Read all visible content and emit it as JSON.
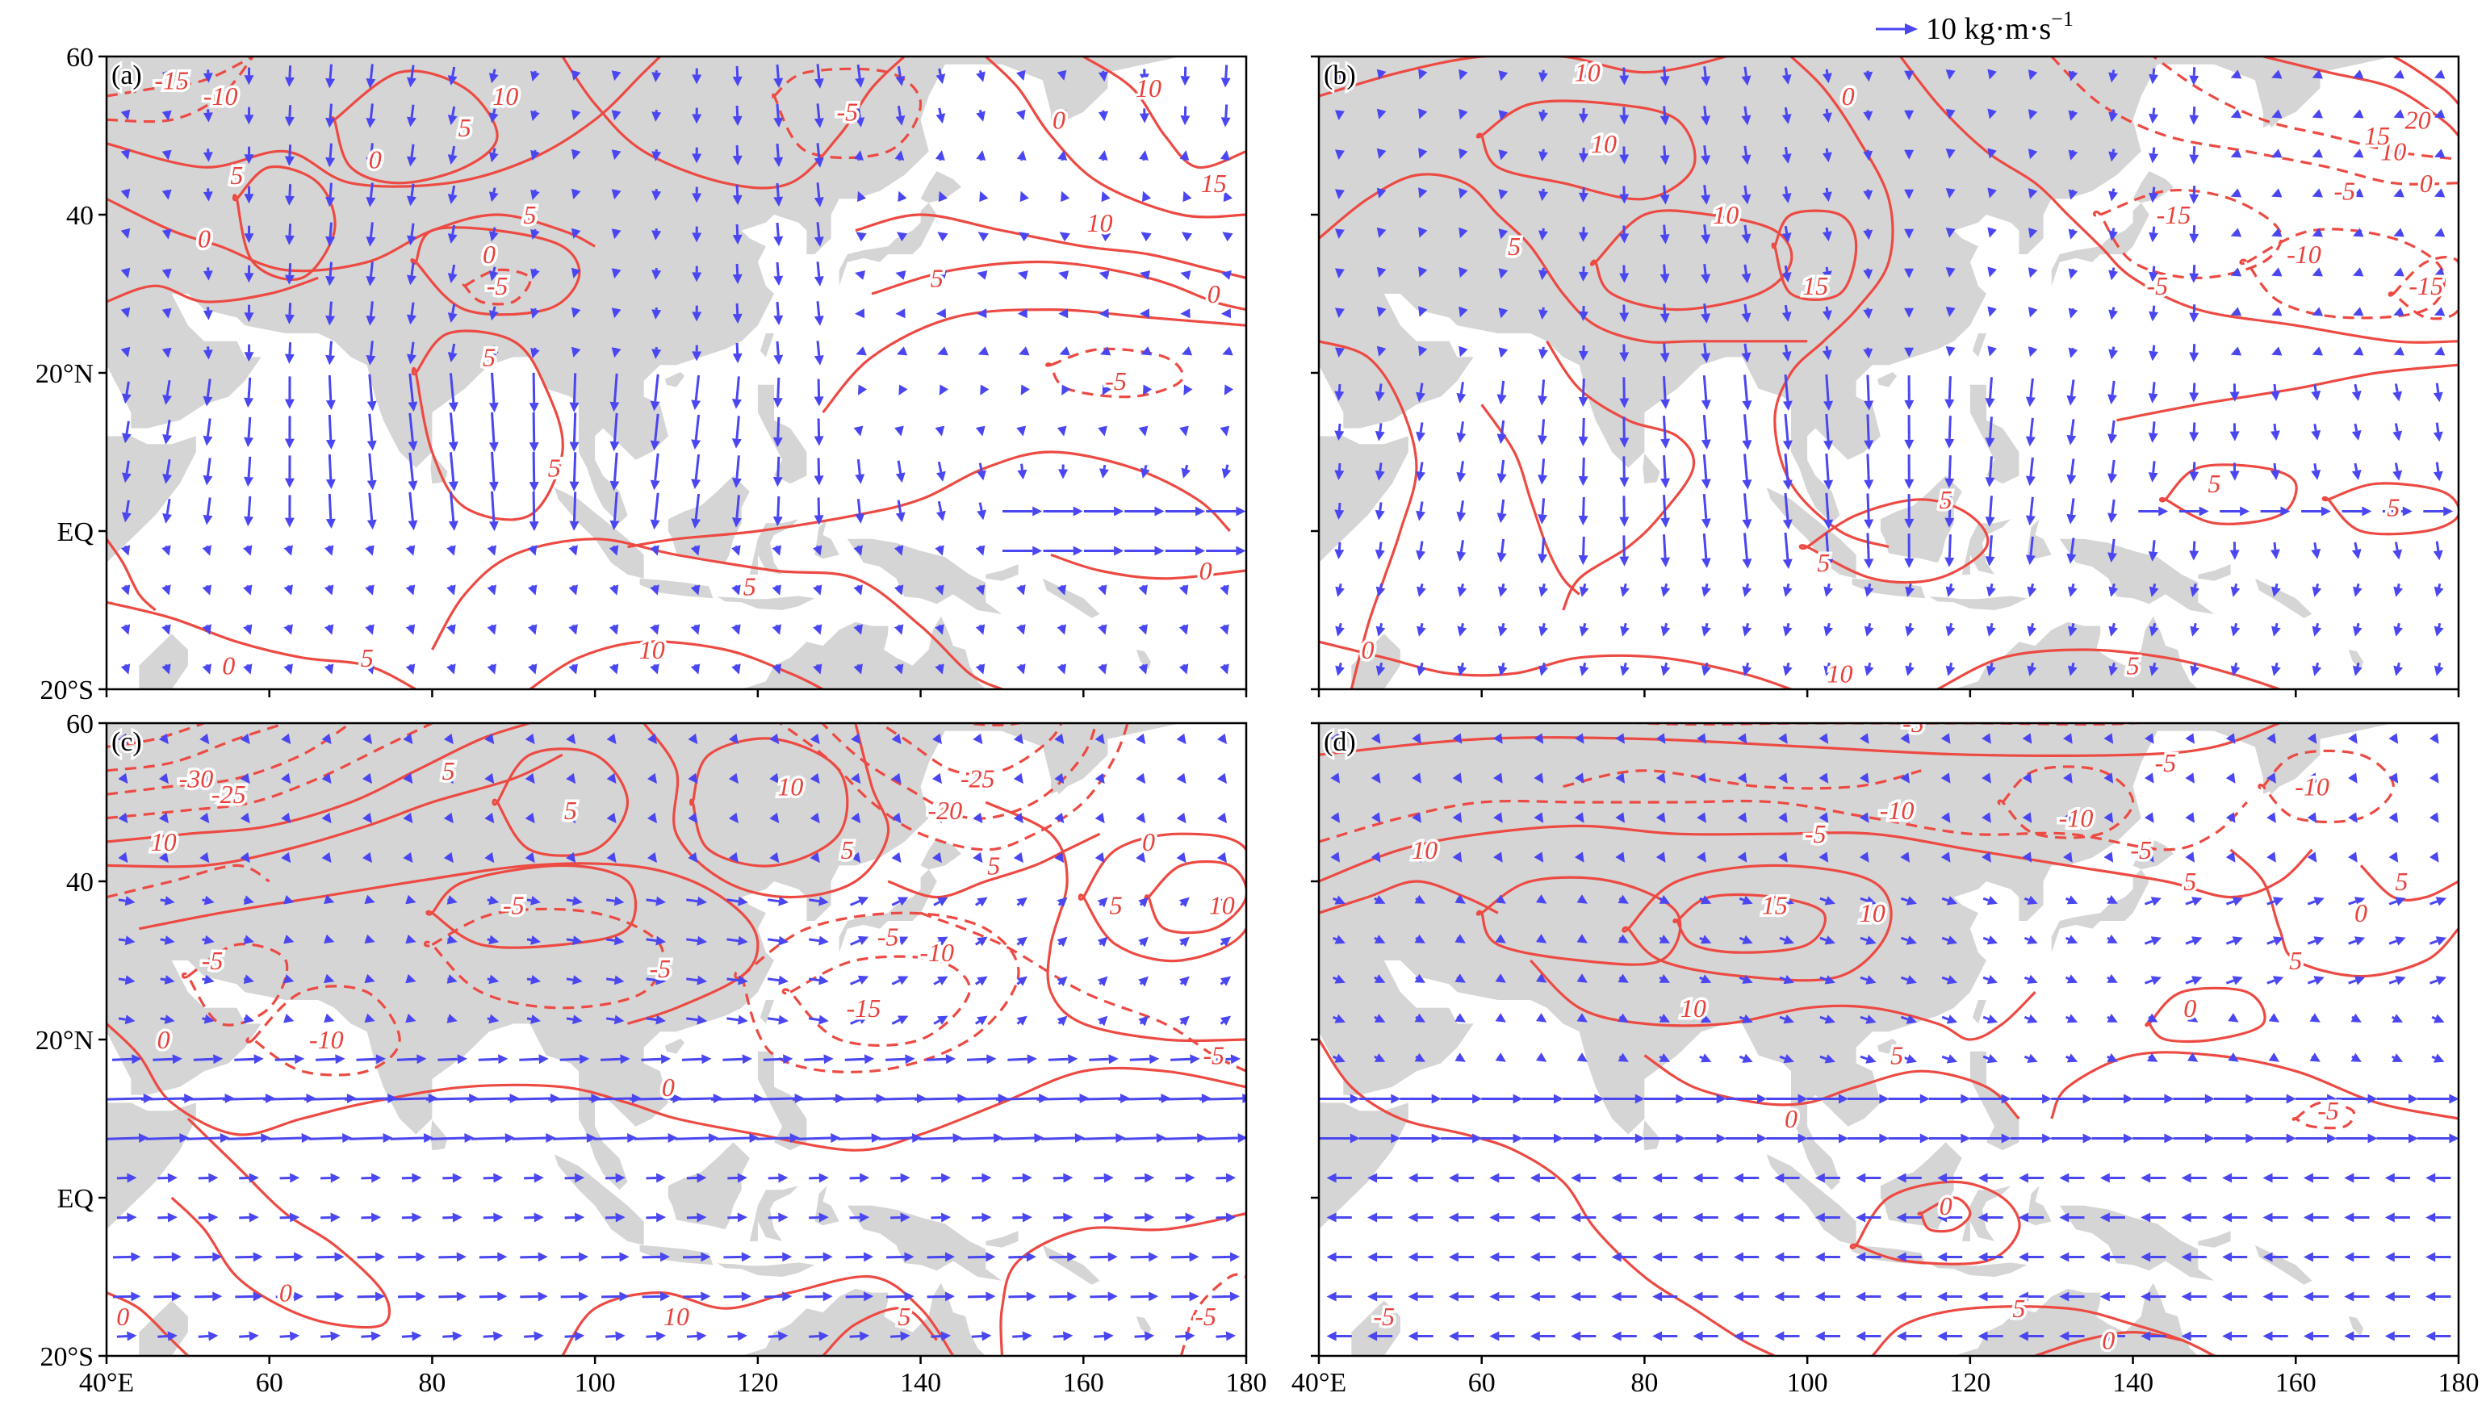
{
  "legend": {
    "vector_label": "10 kg·m·s",
    "vector_label_exponent": "−1",
    "vector_color": "#4a46f0"
  },
  "colors": {
    "contour": "#ec4a42",
    "land": "#d5d5d5",
    "vector": "#4a46f0"
  },
  "axes": {
    "lon_ticks": [
      "40°E",
      "60",
      "80",
      "100",
      "120",
      "140",
      "160",
      "180"
    ],
    "lat_ticks": [
      "60",
      "40",
      "20°N",
      "EQ",
      "20°S"
    ],
    "lon_range": [
      40,
      180
    ],
    "lat_range": [
      -20,
      60
    ]
  },
  "panels": [
    {
      "label": "(a)",
      "contours": [
        {
          "level": "-15",
          "lon": 48,
          "lat": 57
        },
        {
          "level": "-10",
          "lon": 54,
          "lat": 55
        },
        {
          "level": "10",
          "lon": 89,
          "lat": 55
        },
        {
          "level": "5",
          "lon": 84,
          "lat": 51
        },
        {
          "level": "0",
          "lon": 73,
          "lat": 47
        },
        {
          "level": "5",
          "lon": 56,
          "lat": 45
        },
        {
          "level": "0",
          "lon": 52,
          "lat": 37
        },
        {
          "level": "5",
          "lon": 92,
          "lat": 40
        },
        {
          "level": "0",
          "lon": 87,
          "lat": 35
        },
        {
          "level": "-5",
          "lon": 88,
          "lat": 31
        },
        {
          "level": "5",
          "lon": 87,
          "lat": 22
        },
        {
          "level": "5",
          "lon": 95,
          "lat": 8
        },
        {
          "level": "-5",
          "lon": 131,
          "lat": 53
        },
        {
          "level": "0",
          "lon": 157,
          "lat": 52
        },
        {
          "level": "10",
          "lon": 168,
          "lat": 56
        },
        {
          "level": "15",
          "lon": 176,
          "lat": 44
        },
        {
          "level": "10",
          "lon": 162,
          "lat": 39
        },
        {
          "level": "5",
          "lon": 142,
          "lat": 32
        },
        {
          "level": "0",
          "lon": 176,
          "lat": 30
        },
        {
          "level": "-5",
          "lon": 164,
          "lat": 19
        },
        {
          "level": "5",
          "lon": 119,
          "lat": -7
        },
        {
          "level": "10",
          "lon": 107,
          "lat": -15
        },
        {
          "level": "5",
          "lon": 72,
          "lat": -16
        },
        {
          "level": "0",
          "lon": 55,
          "lat": -17
        },
        {
          "level": "0",
          "lon": 175,
          "lat": -5
        }
      ]
    },
    {
      "label": "(b)",
      "contours": [
        {
          "level": "10",
          "lon": 73,
          "lat": 58
        },
        {
          "level": "10",
          "lon": 75,
          "lat": 49
        },
        {
          "level": "0",
          "lon": 105,
          "lat": 55
        },
        {
          "level": "10",
          "lon": 90,
          "lat": 40
        },
        {
          "level": "5",
          "lon": 64,
          "lat": 36
        },
        {
          "level": "15",
          "lon": 101,
          "lat": 31
        },
        {
          "level": "20",
          "lon": 175,
          "lat": 52
        },
        {
          "level": "10",
          "lon": 172,
          "lat": 48
        },
        {
          "level": "15",
          "lon": 170,
          "lat": 50
        },
        {
          "level": "0",
          "lon": 176,
          "lat": 44
        },
        {
          "level": "-5",
          "lon": 166,
          "lat": 43
        },
        {
          "level": "-15",
          "lon": 145,
          "lat": 40
        },
        {
          "level": "-10",
          "lon": 161,
          "lat": 35
        },
        {
          "level": "-15",
          "lon": 176,
          "lat": 31
        },
        {
          "level": "-5",
          "lon": 143,
          "lat": 31
        },
        {
          "level": "5",
          "lon": 117,
          "lat": 4
        },
        {
          "level": "5",
          "lon": 102,
          "lat": -4
        },
        {
          "level": "5",
          "lon": 150,
          "lat": 6
        },
        {
          "level": "5",
          "lon": 172,
          "lat": 3
        },
        {
          "level": "0",
          "lon": 46,
          "lat": -15
        },
        {
          "level": "10",
          "lon": 104,
          "lat": -18
        },
        {
          "level": "5",
          "lon": 140,
          "lat": -17
        }
      ]
    },
    {
      "label": "(c)",
      "contours": [
        {
          "level": "-30",
          "lon": 51,
          "lat": 53
        },
        {
          "level": "-25",
          "lon": 55,
          "lat": 51
        },
        {
          "level": "10",
          "lon": 47,
          "lat": 45
        },
        {
          "level": "5",
          "lon": 82,
          "lat": 54
        },
        {
          "level": "5",
          "lon": 97,
          "lat": 49
        },
        {
          "level": "10",
          "lon": 124,
          "lat": 52
        },
        {
          "level": "5",
          "lon": 131,
          "lat": 44
        },
        {
          "level": "-25",
          "lon": 147,
          "lat": 53
        },
        {
          "level": "-20",
          "lon": 143,
          "lat": 49
        },
        {
          "level": "5",
          "lon": 149,
          "lat": 42
        },
        {
          "level": "0",
          "lon": 168,
          "lat": 45
        },
        {
          "level": "5",
          "lon": 164,
          "lat": 37
        },
        {
          "level": "10",
          "lon": 177,
          "lat": 37
        },
        {
          "level": "-5",
          "lon": 90,
          "lat": 37
        },
        {
          "level": "-5",
          "lon": 108,
          "lat": 29
        },
        {
          "level": "-5",
          "lon": 53,
          "lat": 30
        },
        {
          "level": "-10",
          "lon": 67,
          "lat": 20
        },
        {
          "level": "0",
          "lon": 47,
          "lat": 20
        },
        {
          "level": "-10",
          "lon": 142,
          "lat": 31
        },
        {
          "level": "-5",
          "lon": 136,
          "lat": 33
        },
        {
          "level": "-15",
          "lon": 133,
          "lat": 24
        },
        {
          "level": "-5",
          "lon": 176,
          "lat": 18
        },
        {
          "level": "0",
          "lon": 109,
          "lat": 14
        },
        {
          "level": "0",
          "lon": 62,
          "lat": -12
        },
        {
          "level": "10",
          "lon": 110,
          "lat": -15
        },
        {
          "level": "5",
          "lon": 138,
          "lat": -15
        },
        {
          "level": "-5",
          "lon": 175,
          "lat": -15
        },
        {
          "level": "0",
          "lon": 42,
          "lat": -15
        }
      ]
    },
    {
      "label": "(d)",
      "contours": [
        {
          "level": "-5",
          "lon": 113,
          "lat": 60
        },
        {
          "level": "-5",
          "lon": 144,
          "lat": 55
        },
        {
          "level": "-10",
          "lon": 162,
          "lat": 52
        },
        {
          "level": "-10",
          "lon": 111,
          "lat": 49
        },
        {
          "level": "-5",
          "lon": 101,
          "lat": 46
        },
        {
          "level": "-10",
          "lon": 133,
          "lat": 48
        },
        {
          "level": "-5",
          "lon": 141,
          "lat": 44
        },
        {
          "level": "10",
          "lon": 53,
          "lat": 44
        },
        {
          "level": "5",
          "lon": 147,
          "lat": 40
        },
        {
          "level": "0",
          "lon": 168,
          "lat": 36
        },
        {
          "level": "5",
          "lon": 173,
          "lat": 40
        },
        {
          "level": "5",
          "lon": 160,
          "lat": 30
        },
        {
          "level": "15",
          "lon": 96,
          "lat": 37
        },
        {
          "level": "10",
          "lon": 108,
          "lat": 36
        },
        {
          "level": "10",
          "lon": 86,
          "lat": 24
        },
        {
          "level": "0",
          "lon": 147,
          "lat": 24
        },
        {
          "level": "-5",
          "lon": 164,
          "lat": 11
        },
        {
          "level": "5",
          "lon": 111,
          "lat": 18
        },
        {
          "level": "0",
          "lon": 98,
          "lat": 10
        },
        {
          "level": "0",
          "lon": 117,
          "lat": -1
        },
        {
          "level": "-5",
          "lon": 48,
          "lat": -15
        },
        {
          "level": "5",
          "lon": 126,
          "lat": -14
        },
        {
          "level": "0",
          "lon": 137,
          "lat": -18
        }
      ]
    }
  ]
}
